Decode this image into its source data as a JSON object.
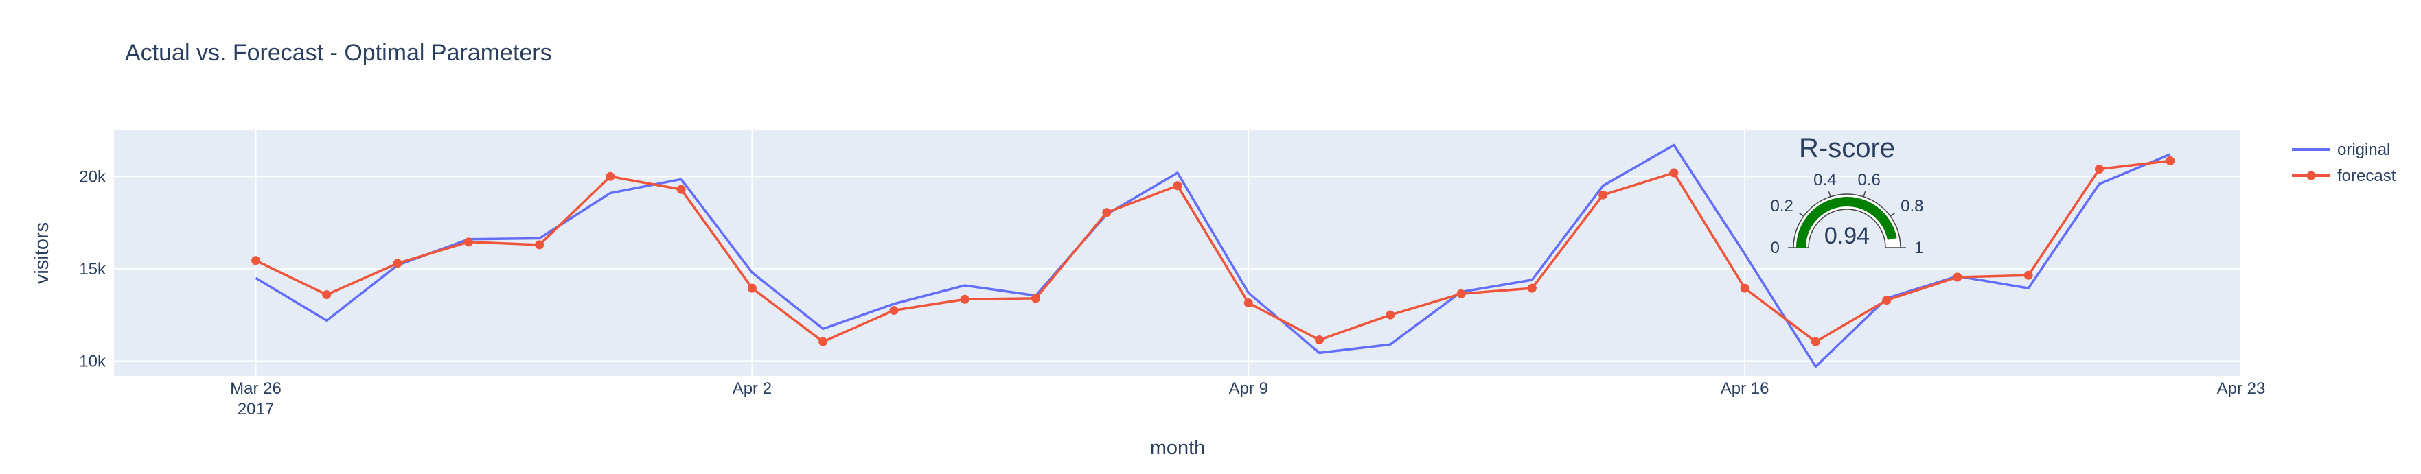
{
  "chart_data": [
    {
      "type": "line",
      "title": "Actual vs. Forecast - Optimal Parameters",
      "xlabel": "month",
      "ylabel": "visitors",
      "x_ticks": [
        {
          "date": "2017-03-26",
          "label": "Mar 26",
          "sublabel": "2017"
        },
        {
          "date": "2017-04-02",
          "label": "Apr 2",
          "sublabel": ""
        },
        {
          "date": "2017-04-09",
          "label": "Apr 9",
          "sublabel": ""
        },
        {
          "date": "2017-04-16",
          "label": "Apr 16",
          "sublabel": ""
        },
        {
          "date": "2017-04-23",
          "label": "Apr 23",
          "sublabel": ""
        }
      ],
      "xlim": [
        "2017-03-24",
        "2017-04-23"
      ],
      "y_ticks": [
        {
          "value": 10000,
          "label": "10k"
        },
        {
          "value": 15000,
          "label": "15k"
        },
        {
          "value": 20000,
          "label": "20k"
        }
      ],
      "ylim": [
        9200,
        22500
      ],
      "x": [
        "2017-03-26",
        "2017-03-27",
        "2017-03-28",
        "2017-03-29",
        "2017-03-30",
        "2017-03-31",
        "2017-04-01",
        "2017-04-02",
        "2017-04-03",
        "2017-04-04",
        "2017-04-05",
        "2017-04-06",
        "2017-04-07",
        "2017-04-08",
        "2017-04-09",
        "2017-04-10",
        "2017-04-11",
        "2017-04-12",
        "2017-04-13",
        "2017-04-14",
        "2017-04-15",
        "2017-04-16",
        "2017-04-17",
        "2017-04-18",
        "2017-04-19",
        "2017-04-20",
        "2017-04-21",
        "2017-04-22"
      ],
      "series": [
        {
          "name": "original",
          "color": "#636efa",
          "mode": "lines",
          "values": [
            14500,
            12200,
            15200,
            16600,
            16650,
            19100,
            19850,
            14800,
            11750,
            13100,
            14100,
            13550,
            17950,
            20200,
            13700,
            10450,
            10900,
            13750,
            14400,
            19500,
            21700,
            15800,
            9700,
            13400,
            14600,
            13950,
            19600,
            21200
          ]
        },
        {
          "name": "forecast",
          "color": "#ef553b",
          "mode": "lines+markers",
          "values": [
            15450,
            13600,
            15300,
            16450,
            16300,
            20000,
            19300,
            13950,
            11050,
            12750,
            13350,
            13400,
            18050,
            19500,
            13150,
            11150,
            12500,
            13650,
            13950,
            19000,
            20200,
            13950,
            11050,
            13300,
            14550,
            14650,
            20400,
            20850
          ]
        }
      ],
      "legend": {
        "position": "right"
      },
      "plot_bgcolor": "#e5ecf6",
      "grid": true
    },
    {
      "type": "gauge",
      "title": "R-score",
      "value": 0.94,
      "value_label": "0.94",
      "range": [
        0,
        1
      ],
      "ticks": [
        {
          "value": 0,
          "label": "0"
        },
        {
          "value": 0.2,
          "label": "0.2"
        },
        {
          "value": 0.4,
          "label": "0.4"
        },
        {
          "value": 0.6,
          "label": "0.6"
        },
        {
          "value": 0.8,
          "label": "0.8"
        },
        {
          "value": 1,
          "label": "1"
        }
      ],
      "bar_color": "#008000"
    }
  ]
}
